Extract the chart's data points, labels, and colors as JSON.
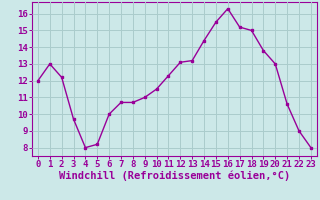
{
  "x": [
    0,
    1,
    2,
    3,
    4,
    5,
    6,
    7,
    8,
    9,
    10,
    11,
    12,
    13,
    14,
    15,
    16,
    17,
    18,
    19,
    20,
    21,
    22,
    23
  ],
  "y": [
    12,
    13,
    12.2,
    9.7,
    8,
    8.2,
    10,
    10.7,
    10.7,
    11,
    11.5,
    12.3,
    13.1,
    13.2,
    14.4,
    15.5,
    16.3,
    15.2,
    15.0,
    13.8,
    13.0,
    10.6,
    9.0,
    8.0
  ],
  "line_color": "#990099",
  "marker_color": "#990099",
  "bg_color": "#cce8e8",
  "grid_color": "#aacccc",
  "xlabel": "Windchill (Refroidissement éolien,°C)",
  "xlabel_color": "#990099",
  "xlim": [
    -0.5,
    23.5
  ],
  "ylim": [
    7.5,
    16.7
  ],
  "yticks": [
    8,
    9,
    10,
    11,
    12,
    13,
    14,
    15,
    16
  ],
  "xticks": [
    0,
    1,
    2,
    3,
    4,
    5,
    6,
    7,
    8,
    9,
    10,
    11,
    12,
    13,
    14,
    15,
    16,
    17,
    18,
    19,
    20,
    21,
    22,
    23
  ],
  "tick_color": "#990099",
  "tick_labelsize": 6.5,
  "xlabel_fontsize": 7.5
}
